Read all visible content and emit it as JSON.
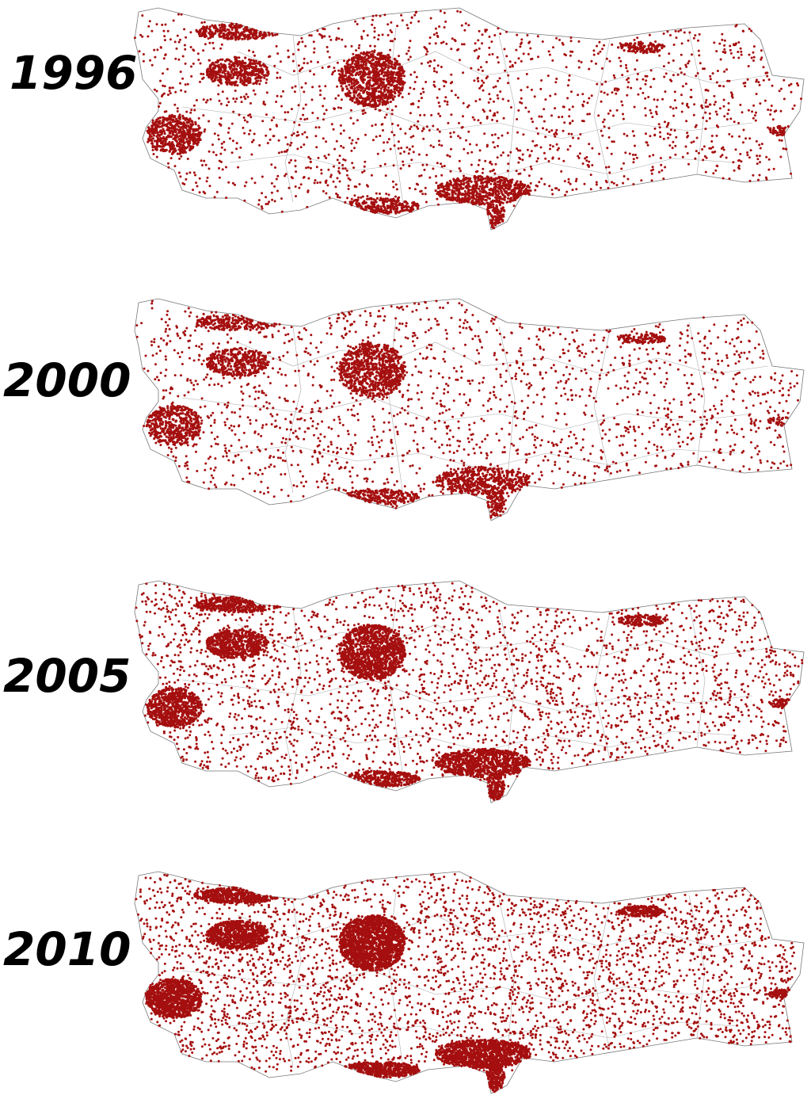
{
  "panels": [
    {
      "year": "1996"
    },
    {
      "year": "2000"
    },
    {
      "year": "2005"
    },
    {
      "year": "2010"
    }
  ]
}
